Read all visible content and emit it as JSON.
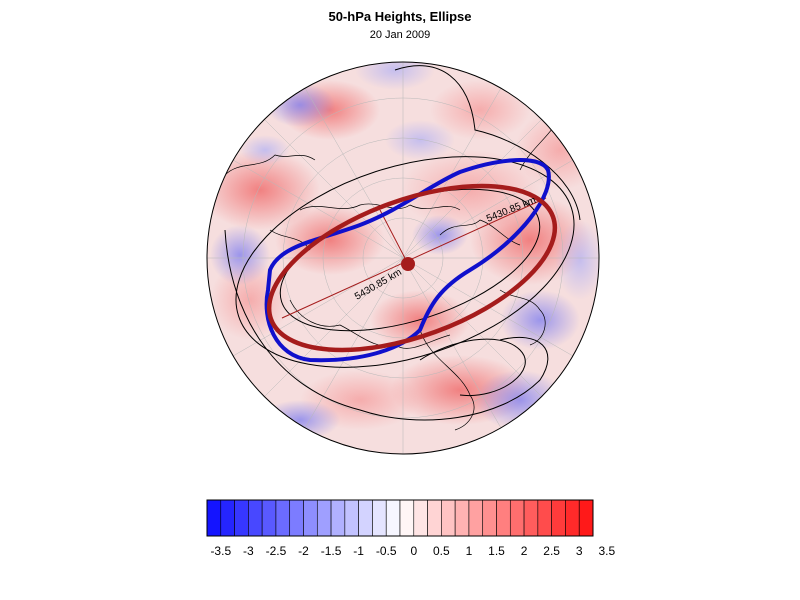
{
  "title": "50-hPa Heights, Ellipse",
  "subtitle": "20 Jan 2009",
  "map": {
    "projection": "north-polar-stereographic",
    "contour_labels": [
      "5430.85 km",
      "5430.85 km"
    ],
    "colors": {
      "blue_ellipse": "#1010cc",
      "red_ellipse": "#a51c1c",
      "contour_line": "#000000",
      "coastline": "#000000",
      "grid": "#aaaaaa"
    }
  },
  "colorbar": {
    "levels": [
      -3.5,
      -3.25,
      -3,
      -2.75,
      -2.5,
      -2.25,
      -2,
      -1.75,
      -1.5,
      -1.25,
      -1,
      -0.75,
      -0.5,
      -0.25,
      0,
      0.25,
      0.5,
      0.75,
      1,
      1.25,
      1.5,
      1.75,
      2,
      2.25,
      2.5,
      2.75,
      3,
      3.25,
      3.5
    ],
    "tick_labels": [
      "-3.5",
      "-3",
      "-2.5",
      "-2",
      "-1.5",
      "-1",
      "-0.5",
      "0",
      "0.5",
      "1",
      "1.5",
      "2",
      "2.5",
      "3",
      "3.5"
    ],
    "min_color": "#0b0bff",
    "mid_color": "#ffffff",
    "max_color": "#ff1010"
  }
}
